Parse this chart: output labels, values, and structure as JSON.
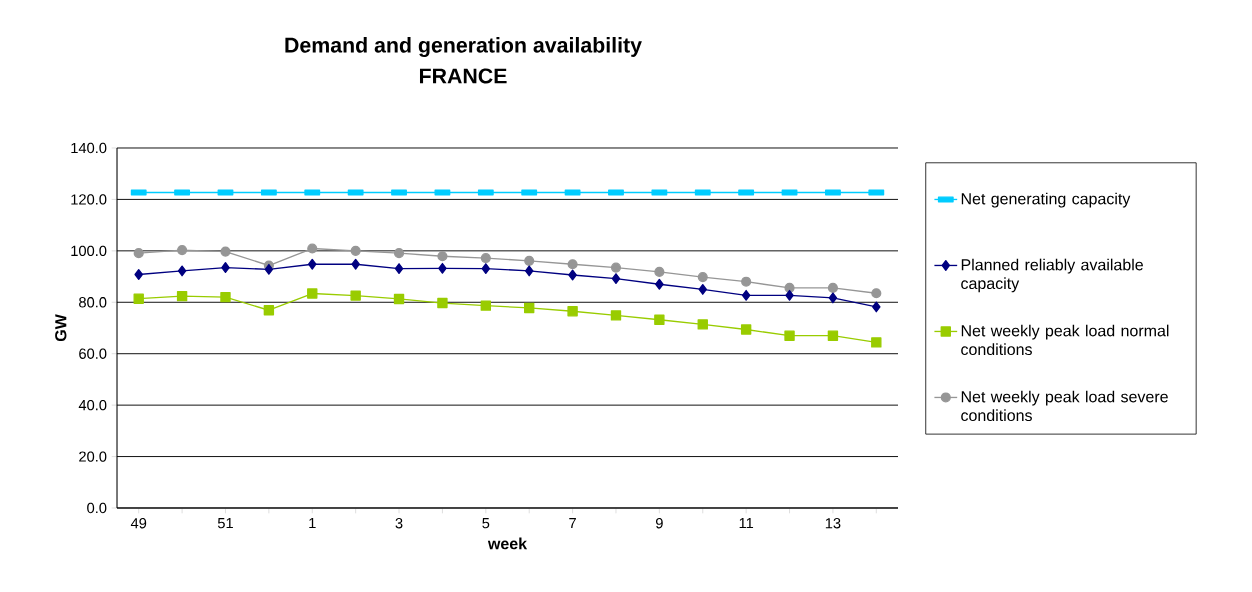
{
  "chart_data": {
    "type": "line",
    "title": "Demand and generation availability",
    "subtitle": "FRANCE",
    "xlabel": "week",
    "ylabel": "GW",
    "categories": [
      "49",
      null,
      "51",
      null,
      "1",
      null,
      "3",
      null,
      "5",
      null,
      "7",
      null,
      "9",
      null,
      "11",
      null,
      "13",
      null
    ],
    "ylim": [
      0,
      140
    ],
    "yticks": [
      {
        "value": 0,
        "label": "0.0"
      },
      {
        "value": 20,
        "label": "20.0"
      },
      {
        "value": 40,
        "label": "40.0"
      },
      {
        "value": 60,
        "label": "60.0"
      },
      {
        "value": 80,
        "label": "80.0"
      },
      {
        "value": 100,
        "label": "100.0"
      },
      {
        "value": 120,
        "label": "120.0"
      },
      {
        "value": 140,
        "label": "140.0"
      }
    ],
    "grid": "y",
    "legend": "right",
    "series": [
      {
        "name": "Net generating capacity",
        "color": "#00ccff",
        "marker": "square",
        "values": [
          122.7,
          122.7,
          122.7,
          122.7,
          122.7,
          122.7,
          122.7,
          122.7,
          122.7,
          122.7,
          122.7,
          122.7,
          122.7,
          122.7,
          122.7,
          122.7,
          122.7,
          122.7
        ]
      },
      {
        "name": "Planned reliably available capacity",
        "color": "#000080",
        "marker": "diamond",
        "values": [
          90.8,
          92.2,
          93.5,
          92.8,
          94.8,
          94.8,
          93.1,
          93.2,
          93.1,
          92.2,
          90.6,
          89.2,
          87.0,
          85.0,
          82.7,
          82.7,
          81.7,
          78.2
        ]
      },
      {
        "name": "Net weekly peak load normal conditions",
        "color": "#99cc00",
        "marker": "square",
        "values": [
          81.4,
          82.4,
          82.0,
          76.9,
          83.4,
          82.6,
          81.3,
          79.7,
          78.7,
          77.8,
          76.5,
          74.9,
          73.2,
          71.4,
          69.4,
          67.0,
          67.0,
          64.4
        ]
      },
      {
        "name": "Net weekly peak load severe conditions",
        "color": "#969696",
        "marker": "circle",
        "values": [
          99.1,
          100.3,
          99.7,
          94.3,
          100.9,
          100.0,
          99.1,
          97.9,
          97.2,
          96.1,
          94.8,
          93.5,
          91.8,
          89.8,
          88.0,
          85.6,
          85.6,
          83.5
        ]
      }
    ]
  }
}
